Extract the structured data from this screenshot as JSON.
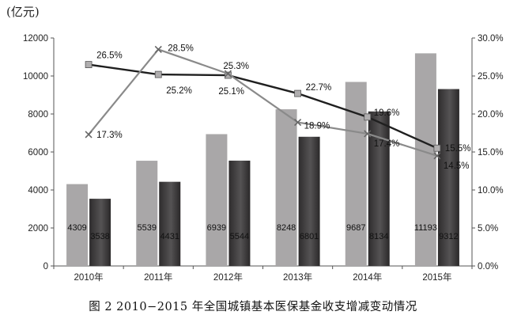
{
  "unit_label": "(亿元)",
  "caption": "图 2  2010−2015 年全国城镇基本医保基金收支增减变动情况",
  "chart_data": {
    "type": "bar",
    "categories": [
      "2010年",
      "2011年",
      "2012年",
      "2013年",
      "2014年",
      "2015年"
    ],
    "series": [
      {
        "kind": "bar",
        "axis": "left",
        "values": [
          4309,
          5539,
          6939,
          8248,
          9687,
          11193
        ],
        "color": "#a9a7a8"
      },
      {
        "kind": "bar",
        "axis": "left",
        "values": [
          3538,
          4431,
          5544,
          6801,
          8134,
          9312
        ],
        "color": "#3f3d3e"
      },
      {
        "kind": "line",
        "axis": "right",
        "values": [
          26.5,
          25.2,
          25.1,
          22.7,
          19.6,
          15.5
        ],
        "labels": [
          "26.5%",
          "25.2%",
          "25.1%",
          "22.7%",
          "19.6%",
          "15.5%"
        ],
        "color": "#1f1f1f",
        "marker": "square"
      },
      {
        "kind": "line",
        "axis": "right",
        "values": [
          17.3,
          28.5,
          25.3,
          18.9,
          17.4,
          14.5
        ],
        "labels": [
          "17.3%",
          "28.5%",
          "25.3%",
          "18.9%",
          "17.4%",
          "14.5%"
        ],
        "color": "#8a8a8a",
        "marker": "x"
      }
    ],
    "y_left": {
      "min": 0,
      "max": 12000,
      "ticks": [
        "0",
        "2000",
        "4000",
        "6000",
        "8000",
        "10000",
        "12000"
      ]
    },
    "y_right": {
      "min": 0,
      "max": 30,
      "ticks": [
        "0.0%",
        "5.0%",
        "10.0%",
        "15.0%",
        "20.0%",
        "25.0%",
        "30.0%"
      ]
    },
    "grid": false,
    "legend": "none"
  }
}
